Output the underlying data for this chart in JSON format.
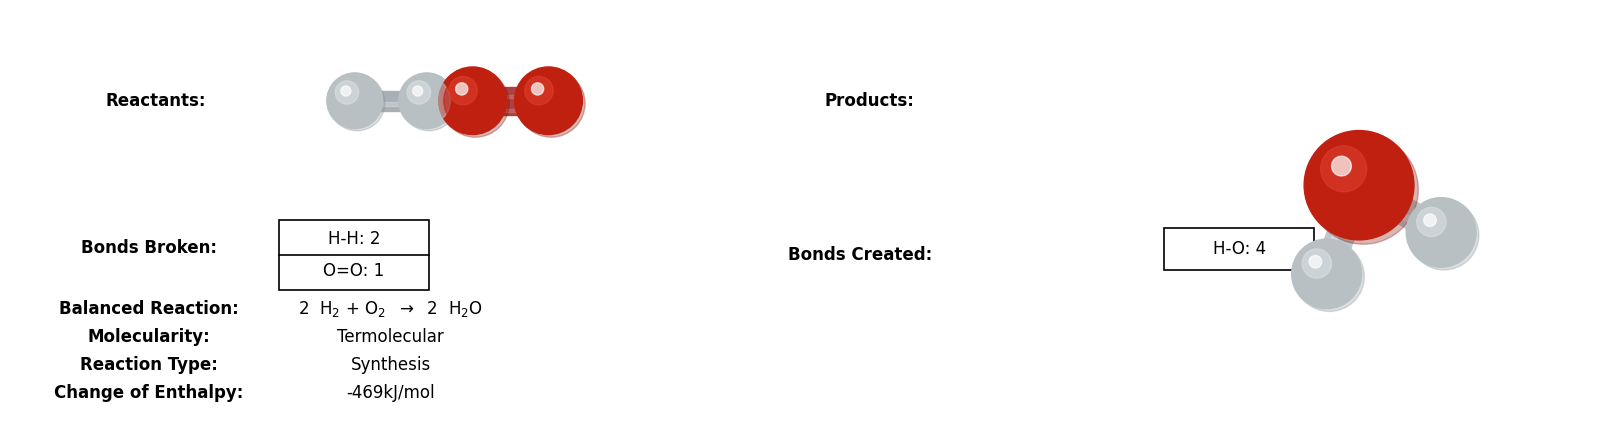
{
  "bg_color": "#ffffff",
  "reactants_label": "Reactants:",
  "products_label": "Products:",
  "bonds_broken_label": "Bonds Broken:",
  "bonds_created_label": "Bonds Created:",
  "balanced_reaction_label": "Balanced Reaction:",
  "molecularity_label": "Molecularity:",
  "reaction_type_label": "Reaction Type:",
  "enthalpy_label": "Change of Enthalpy:",
  "molecularity_value": "Termolecular",
  "reaction_type_value": "Synthesis",
  "enthalpy_value": "-469kJ/mol",
  "bonds_broken_lines": [
    "H-H: 2",
    "O=O: 1"
  ],
  "bonds_created_lines": [
    "H-O: 4"
  ],
  "label_fontsize": 12,
  "value_fontsize": 12,
  "label_color": "#000000",
  "grey_sphere": "#b8c0c4",
  "grey_highlight": "#dde3e6",
  "grey_shadow": "#8a9298",
  "red_sphere": "#c02010",
  "red_highlight": "#e04030",
  "red_shadow": "#801008",
  "bond_grey": "#a8b0b4",
  "bond_red": "#b04040"
}
